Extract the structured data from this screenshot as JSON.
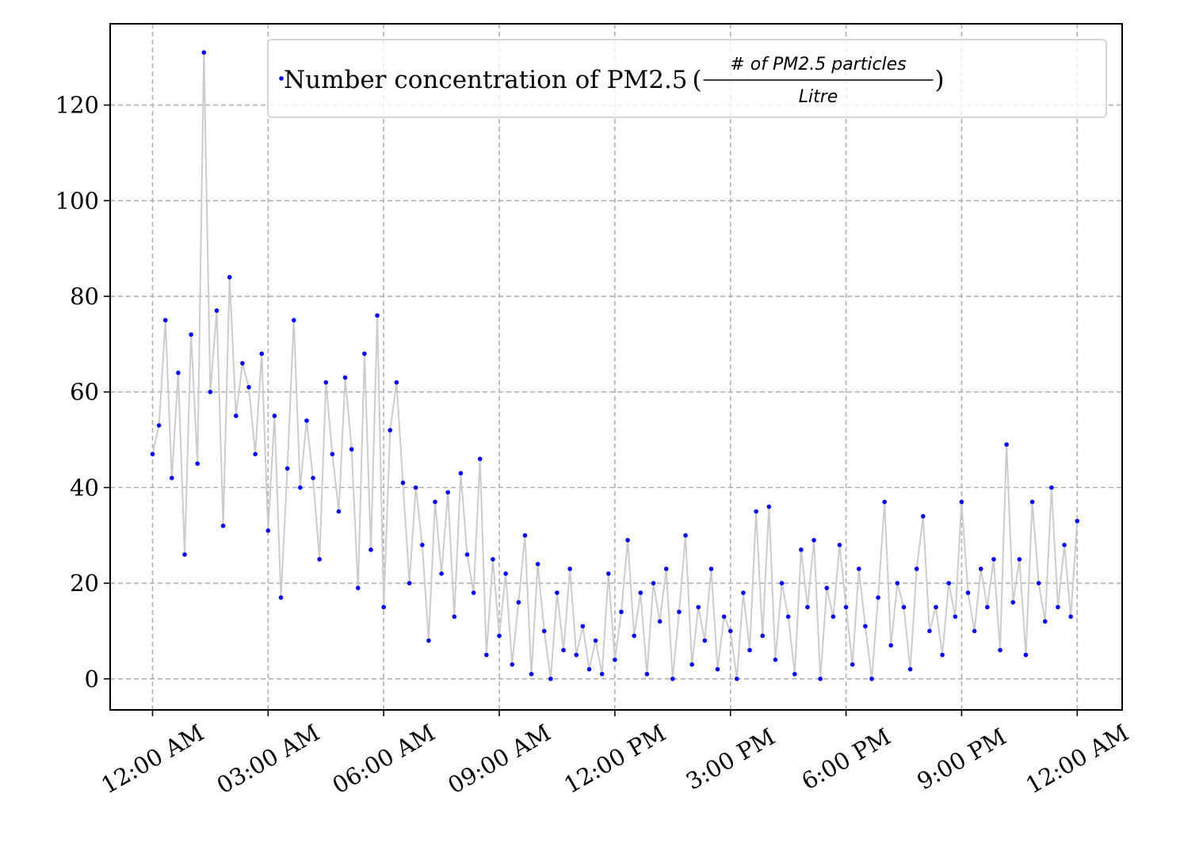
{
  "chart_data": {
    "type": "line",
    "x": [
      0,
      10,
      20,
      30,
      40,
      50,
      60,
      70,
      80,
      90,
      100,
      110,
      120,
      130,
      140,
      150,
      160,
      170,
      180,
      190,
      200,
      210,
      220,
      230,
      240,
      250,
      260,
      270,
      280,
      290,
      300,
      310,
      320,
      330,
      340,
      350,
      360,
      370,
      380,
      390,
      400,
      410,
      420,
      430,
      440,
      450,
      460,
      470,
      480,
      490,
      500,
      510,
      520,
      530,
      540,
      550,
      560,
      570,
      580,
      590,
      600,
      610,
      620,
      630,
      640,
      650,
      660,
      670,
      680,
      690,
      700,
      710,
      720,
      730,
      740,
      750,
      760,
      770,
      780,
      790,
      800,
      810,
      820,
      830,
      840,
      850,
      860,
      870,
      880,
      890,
      900,
      910,
      920,
      930,
      940,
      950,
      960,
      970,
      980,
      990,
      1000,
      1010,
      1020,
      1030,
      1040,
      1050,
      1060,
      1070,
      1080,
      1090,
      1100,
      1110,
      1120,
      1130,
      1140,
      1150,
      1160,
      1170,
      1180,
      1190,
      1200,
      1210,
      1220,
      1230,
      1240,
      1250,
      1260,
      1270,
      1280,
      1290,
      1300,
      1310,
      1320,
      1330,
      1340,
      1350,
      1360,
      1370,
      1380,
      1390,
      1400,
      1410,
      1420,
      1430,
      1440
    ],
    "series": [
      {
        "name": "Number concentration of PM2.5",
        "unit_numerator": "# of PM2.5 particles",
        "unit_denominator": "Litre",
        "color": "#0000ff",
        "line_color": "#cccccc",
        "values": [
          47,
          53,
          75,
          42,
          64,
          26,
          72,
          45,
          131,
          60,
          77,
          32,
          84,
          55,
          66,
          61,
          47,
          68,
          31,
          55,
          17,
          44,
          75,
          40,
          54,
          42,
          25,
          62,
          47,
          35,
          63,
          48,
          19,
          68,
          27,
          76,
          15,
          52,
          62,
          41,
          20,
          40,
          28,
          8,
          37,
          22,
          39,
          13,
          43,
          26,
          18,
          46,
          5,
          25,
          9,
          22,
          3,
          16,
          30,
          1,
          24,
          10,
          0,
          18,
          6,
          23,
          5,
          11,
          2,
          8,
          1,
          22,
          4,
          14,
          29,
          9,
          18,
          1,
          20,
          12,
          23,
          0,
          14,
          30,
          3,
          15,
          8,
          23,
          2,
          13,
          10,
          0,
          18,
          6,
          35,
          9,
          36,
          4,
          20,
          13,
          1,
          27,
          15,
          29,
          0,
          19,
          13,
          28,
          15,
          3,
          23,
          11,
          0,
          17,
          37,
          7,
          20,
          15,
          2,
          23,
          34,
          10,
          15,
          5,
          20,
          13,
          37,
          18,
          10,
          23,
          15,
          25,
          6,
          49,
          16,
          25,
          5,
          37,
          20,
          12,
          40,
          15,
          28,
          13,
          33
        ]
      }
    ],
    "xlim": [
      -66,
      1510
    ],
    "ylim": [
      -6.5,
      137
    ],
    "xticks": [
      {
        "value": 0,
        "label": "12:00 AM"
      },
      {
        "value": 180,
        "label": "03:00 AM"
      },
      {
        "value": 360,
        "label": "06:00 AM"
      },
      {
        "value": 540,
        "label": "09:00 AM"
      },
      {
        "value": 720,
        "label": "12:00 PM"
      },
      {
        "value": 900,
        "label": "3:00 PM"
      },
      {
        "value": 1080,
        "label": "6:00 PM"
      },
      {
        "value": 1260,
        "label": "9:00 PM"
      },
      {
        "value": 1440,
        "label": "12:00 AM"
      }
    ],
    "yticks": [
      0,
      20,
      40,
      60,
      80,
      100,
      120
    ],
    "grid": true,
    "legend": "upper right"
  }
}
